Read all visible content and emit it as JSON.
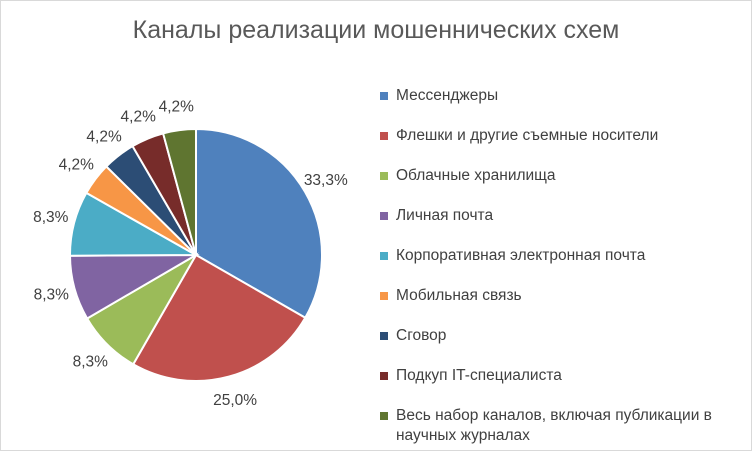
{
  "chart_data": {
    "type": "pie",
    "title": "Каналы реализации мошеннических схем",
    "categories": [
      "Мессенджеры",
      "Флешки и другие съемные носители",
      "Облачные хранилища",
      "Личная почта",
      "Корпоративная электронная почта",
      "Мобильная связь",
      "Сговор",
      "Подкуп IT-специалиста",
      "Весь набор каналов, включая публикации в научных журналах"
    ],
    "values": [
      33.3,
      25.0,
      8.3,
      8.3,
      8.3,
      4.2,
      4.2,
      4.2,
      4.2
    ],
    "data_labels": [
      "33,3%",
      "25,0%",
      "8,3%",
      "8,3%",
      "8,3%",
      "4,2%",
      "4,2%",
      "4,2%",
      "4,2%"
    ],
    "colors": [
      "#4F81BD",
      "#C0504D",
      "#9BBB59",
      "#8064A2",
      "#4BACC6",
      "#F79646",
      "#2C4D75",
      "#772C2A",
      "#5F7530"
    ],
    "legend_position": "right"
  }
}
